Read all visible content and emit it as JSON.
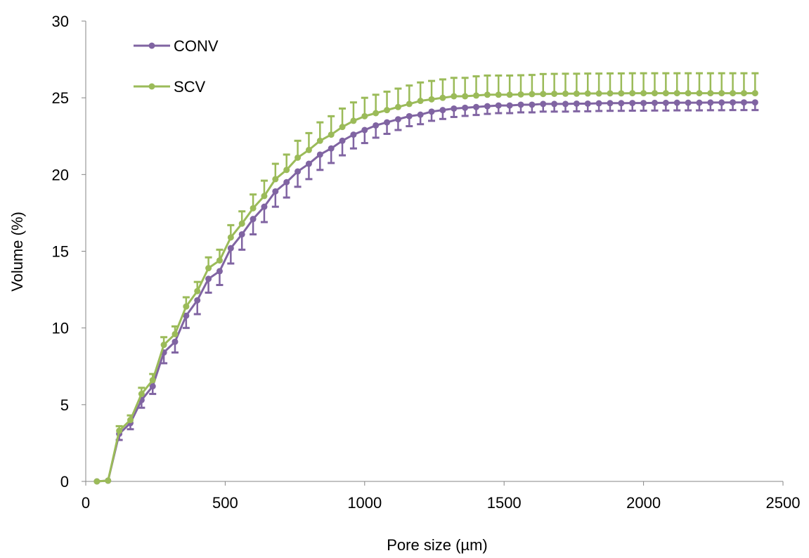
{
  "chart_data": {
    "type": "line",
    "title": "",
    "xlabel": "Pore size (µm)",
    "ylabel": "Volume (%)",
    "xlim": [
      0,
      2500
    ],
    "ylim": [
      0,
      30
    ],
    "x_ticks": [
      0,
      500,
      1000,
      1500,
      2000,
      2500
    ],
    "y_ticks": [
      0,
      5,
      10,
      15,
      20,
      25,
      30
    ],
    "x_tick_labels": [
      "0",
      "500",
      "1000",
      "1500",
      "2000",
      "2500"
    ],
    "y_tick_labels": [
      "0",
      "5",
      "10",
      "15",
      "20",
      "25",
      "30"
    ],
    "grid": false,
    "legend_position": "top-left",
    "x": [
      40,
      80,
      120,
      160,
      200,
      240,
      280,
      320,
      360,
      400,
      440,
      480,
      520,
      560,
      600,
      640,
      680,
      720,
      760,
      800,
      840,
      880,
      920,
      960,
      1000,
      1040,
      1080,
      1120,
      1160,
      1200,
      1240,
      1280,
      1320,
      1360,
      1400,
      1440,
      1480,
      1520,
      1560,
      1600,
      1640,
      1680,
      1720,
      1760,
      1800,
      1840,
      1880,
      1920,
      1960,
      2000,
      2040,
      2080,
      2120,
      2160,
      2200,
      2240,
      2280,
      2320,
      2360,
      2400
    ],
    "series": [
      {
        "name": "CONV",
        "color": "#8064A2",
        "error_direction": "down",
        "values": [
          0,
          0.05,
          3.1,
          3.8,
          5.3,
          6.2,
          8.4,
          9.1,
          10.8,
          11.8,
          13.2,
          13.7,
          15.2,
          16.1,
          17.1,
          17.9,
          18.9,
          19.5,
          20.2,
          20.7,
          21.3,
          21.7,
          22.2,
          22.6,
          22.9,
          23.2,
          23.4,
          23.6,
          23.8,
          23.9,
          24.1,
          24.2,
          24.3,
          24.35,
          24.4,
          24.45,
          24.5,
          24.5,
          24.55,
          24.55,
          24.6,
          24.6,
          24.6,
          24.62,
          24.62,
          24.64,
          24.65,
          24.65,
          24.66,
          24.66,
          24.67,
          24.67,
          24.68,
          24.68,
          24.68,
          24.69,
          24.69,
          24.7,
          24.7,
          24.7
        ],
        "errors": [
          0,
          0,
          0.4,
          0.4,
          0.5,
          0.5,
          0.7,
          0.7,
          0.8,
          0.9,
          0.9,
          0.9,
          1.0,
          1.0,
          1.0,
          1.0,
          1.0,
          1.0,
          1.0,
          1.0,
          1.0,
          0.95,
          0.95,
          0.9,
          0.85,
          0.8,
          0.75,
          0.7,
          0.65,
          0.62,
          0.6,
          0.58,
          0.55,
          0.53,
          0.52,
          0.5,
          0.5,
          0.5,
          0.5,
          0.5,
          0.5,
          0.5,
          0.5,
          0.5,
          0.5,
          0.5,
          0.5,
          0.5,
          0.5,
          0.5,
          0.5,
          0.5,
          0.5,
          0.5,
          0.5,
          0.5,
          0.5,
          0.5,
          0.5,
          0.5
        ]
      },
      {
        "name": "SCV",
        "color": "#9BBB59",
        "error_direction": "up",
        "values": [
          0,
          0.05,
          3.3,
          4.0,
          5.7,
          6.6,
          8.9,
          9.6,
          11.4,
          12.4,
          13.9,
          14.4,
          15.9,
          16.8,
          17.8,
          18.6,
          19.7,
          20.3,
          21.1,
          21.6,
          22.2,
          22.6,
          23.1,
          23.5,
          23.8,
          24.0,
          24.2,
          24.4,
          24.6,
          24.8,
          24.9,
          25.0,
          25.1,
          25.1,
          25.15,
          25.2,
          25.2,
          25.2,
          25.22,
          25.24,
          25.25,
          25.26,
          25.27,
          25.27,
          25.28,
          25.28,
          25.29,
          25.29,
          25.3,
          25.3,
          25.3,
          25.3,
          25.3,
          25.3,
          25.3,
          25.3,
          25.3,
          25.3,
          25.3,
          25.3
        ],
        "errors": [
          0,
          0,
          0.3,
          0.3,
          0.4,
          0.4,
          0.5,
          0.5,
          0.6,
          0.6,
          0.7,
          0.7,
          0.8,
          0.8,
          0.9,
          1.0,
          1.0,
          1.0,
          1.1,
          1.1,
          1.2,
          1.2,
          1.2,
          1.2,
          1.2,
          1.2,
          1.2,
          1.2,
          1.2,
          1.2,
          1.2,
          1.2,
          1.2,
          1.2,
          1.25,
          1.25,
          1.25,
          1.25,
          1.25,
          1.25,
          1.3,
          1.3,
          1.3,
          1.3,
          1.3,
          1.3,
          1.3,
          1.3,
          1.3,
          1.3,
          1.3,
          1.3,
          1.3,
          1.3,
          1.3,
          1.3,
          1.3,
          1.3,
          1.3,
          1.3
        ]
      }
    ]
  }
}
